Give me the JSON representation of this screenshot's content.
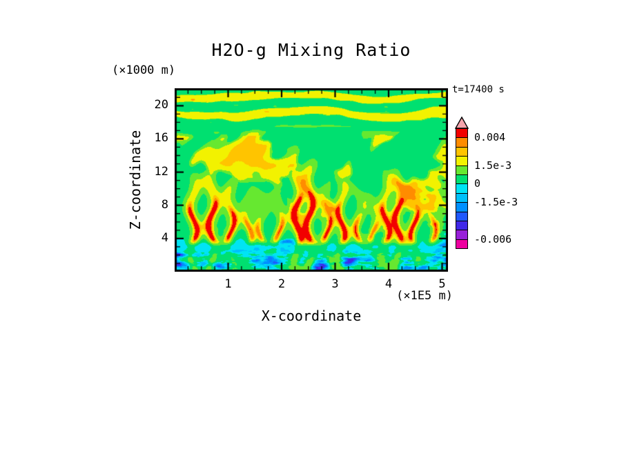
{
  "title": "H2O-g Mixing Ratio",
  "chart_data": {
    "type": "heatmap",
    "title": "H2O-g Mixing Ratio",
    "xlabel": "X-coordinate",
    "ylabel": "Z-coordinate",
    "x_unit": "(×1E5 m)",
    "y_unit": "(×1000 m)",
    "time_label": "t=17400 s",
    "x_range": [
      0,
      5.11
    ],
    "y_range": [
      0,
      22.1
    ],
    "x_ticks": [
      "1",
      "2",
      "3",
      "4",
      "5"
    ],
    "y_ticks": [
      "4",
      "8",
      "12",
      "16",
      "20"
    ],
    "x_minor_step": 0.25,
    "y_minor_step": 1,
    "grid": false,
    "levels": [
      -0.006,
      -0.0045,
      -0.003,
      -0.00225,
      -0.0015,
      -0.00075,
      0,
      0.00075,
      0.0015,
      0.00225,
      0.003,
      0.004
    ],
    "level_colors": [
      "#ee00a0",
      "#9820d8",
      "#4028e8",
      "#2058fc",
      "#0090ff",
      "#00c0fa",
      "#00e4f4",
      "#00e070",
      "#66e830",
      "#f2f200",
      "#ffc400",
      "#ff8c00",
      "#f20000"
    ],
    "colorbar": {
      "tip_color": "#f4a4ac",
      "labels": [
        {
          "text": "0.004",
          "level_index": 11
        },
        {
          "text": "1.5e-3",
          "level_index": 8
        },
        {
          "text": "0",
          "level_index": 6
        },
        {
          "text": "-1.5e-3",
          "level_index": 4
        },
        {
          "text": "-0.006",
          "level_index": 0
        }
      ]
    },
    "plumes": [
      [
        0.35,
        0.9,
        8.5
      ],
      [
        0.7,
        1.0,
        9.0
      ],
      [
        1.05,
        0.8,
        8.0
      ],
      [
        1.38,
        0.55,
        7.0
      ],
      [
        1.62,
        0.5,
        6.5
      ],
      [
        1.95,
        0.6,
        7.0
      ],
      [
        2.3,
        1.05,
        9.5
      ],
      [
        2.52,
        1.1,
        10.0
      ],
      [
        2.85,
        0.7,
        7.5
      ],
      [
        3.12,
        0.9,
        8.5
      ],
      [
        3.45,
        0.6,
        7.0
      ],
      [
        3.72,
        0.5,
        6.5
      ],
      [
        3.95,
        0.85,
        8.5
      ],
      [
        4.18,
        1.0,
        9.0
      ],
      [
        4.48,
        0.8,
        8.0
      ],
      [
        4.82,
        0.6,
        7.0
      ]
    ],
    "field_description": "Filled-contour field of H2O-g mixing-ratio perturbation: broad green background (~+0.0003), yellow convective wisps between z=6 and 16 km, narrow orange-red updraft cores between z=4 and 10 km at the plume x-positions, horizontal yellow/green wave bands above z=18 km with orange-red spots, a cyan negative band near z=3 km, and a noisy bottom layer (z<2.5 km) of blue, dark-blue, purple and magenta anomalies."
  }
}
